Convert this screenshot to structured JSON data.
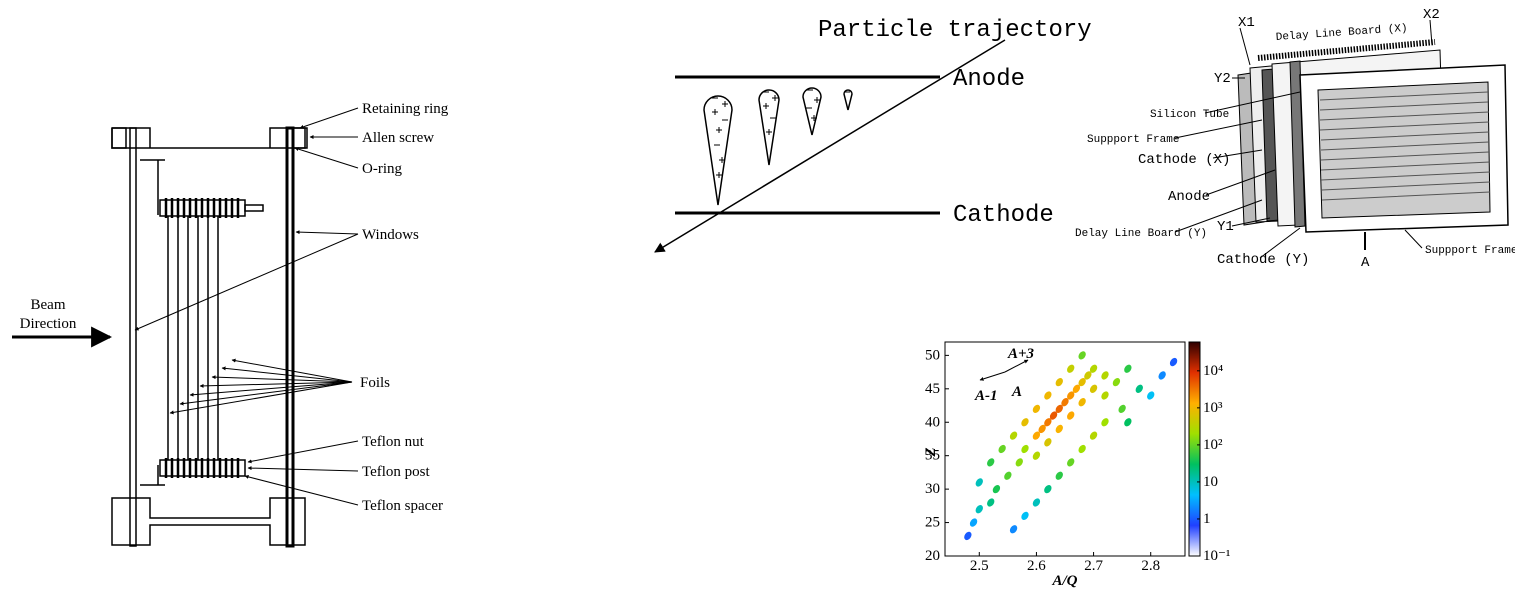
{
  "foil_detector": {
    "retaining_ring": "Retaining ring",
    "allen_screw": "Allen screw",
    "o_ring": "O-ring",
    "windows": "Windows",
    "beam_direction": [
      "Beam",
      "Direction"
    ],
    "foils": "Foils",
    "teflon_nut": "Teflon nut",
    "teflon_post": "Teflon post",
    "teflon_spacer": "Teflon spacer"
  },
  "ionization": {
    "trajectory": "Particle trajectory",
    "anode": "Anode",
    "cathode": "Cathode"
  },
  "ppac": {
    "x1": "X1",
    "x2": "X2",
    "delay_x": "Delay Line Board (X)",
    "y2": "Y2",
    "silicon_tube": "Silicon Tube",
    "support_frame_left": "Suppport Frame",
    "cathode_x": "Cathode (X)",
    "anode": "Anode",
    "y1": "Y1",
    "delay_y": "Delay Line Board (Y)",
    "cathode_y": "Cathode (Y)",
    "a": "A",
    "support_frame_right": "Suppport Frame"
  },
  "chart_data": {
    "type": "heatmap",
    "xlabel": "A/Q",
    "ylabel": "Z",
    "x": [
      2.62,
      2.63,
      2.64,
      2.61,
      2.65,
      2.6,
      2.66,
      2.67,
      2.68,
      2.69,
      2.7,
      2.66,
      2.68,
      2.7,
      2.72,
      2.64,
      2.62,
      2.6,
      2.58,
      2.57,
      2.55,
      2.53,
      2.52,
      2.5,
      2.49,
      2.48,
      2.56,
      2.58,
      2.6,
      2.62,
      2.64,
      2.66,
      2.68,
      2.72,
      2.74,
      2.76,
      2.78,
      2.8,
      2.75,
      2.72,
      2.7,
      2.68,
      2.66,
      2.64,
      2.62,
      2.6,
      2.58,
      2.56,
      2.76,
      2.82,
      2.84,
      2.54,
      2.52,
      2.5
    ],
    "y": [
      40,
      41,
      42,
      39,
      43,
      38,
      44,
      45,
      46,
      47,
      48,
      41,
      43,
      45,
      47,
      39,
      37,
      35,
      36,
      34,
      32,
      30,
      28,
      27,
      25,
      23,
      38,
      40,
      42,
      44,
      46,
      48,
      50,
      44,
      46,
      48,
      45,
      44,
      42,
      40,
      38,
      36,
      34,
      32,
      30,
      28,
      26,
      24,
      40,
      47,
      49,
      36,
      34,
      31
    ],
    "values": [
      3000,
      5000,
      4000,
      2000,
      3000,
      1500,
      2000,
      1500,
      800,
      500,
      300,
      1500,
      1000,
      600,
      300,
      1200,
      600,
      300,
      200,
      150,
      80,
      40,
      20,
      10,
      3,
      1,
      300,
      800,
      1000,
      1000,
      800,
      400,
      100,
      300,
      150,
      50,
      20,
      5,
      80,
      200,
      300,
      200,
      100,
      50,
      20,
      10,
      5,
      2,
      30,
      2,
      1,
      100,
      50,
      10
    ],
    "xlim": [
      2.44,
      2.86
    ],
    "ylim": [
      20,
      52
    ],
    "xticks": [
      2.5,
      2.6,
      2.7,
      2.8
    ],
    "yticks": [
      20,
      25,
      30,
      35,
      40,
      45,
      50
    ],
    "log_color": true,
    "clim": [
      0.1,
      60000
    ],
    "cticks": [
      {
        "value": 0.1,
        "label": "10⁻¹"
      },
      1,
      10,
      {
        "value": 100,
        "label": "10²"
      },
      {
        "value": 1000,
        "label": "10³"
      },
      {
        "value": 10000,
        "label": "10⁴"
      }
    ],
    "colors": [
      "#ffffff",
      "#2040ff",
      "#00c0ff",
      "#00c060",
      "#a0e000",
      "#ffb000",
      "#e03000",
      "#300000"
    ],
    "annotations": [
      "A+3",
      "A",
      "A-1"
    ]
  }
}
